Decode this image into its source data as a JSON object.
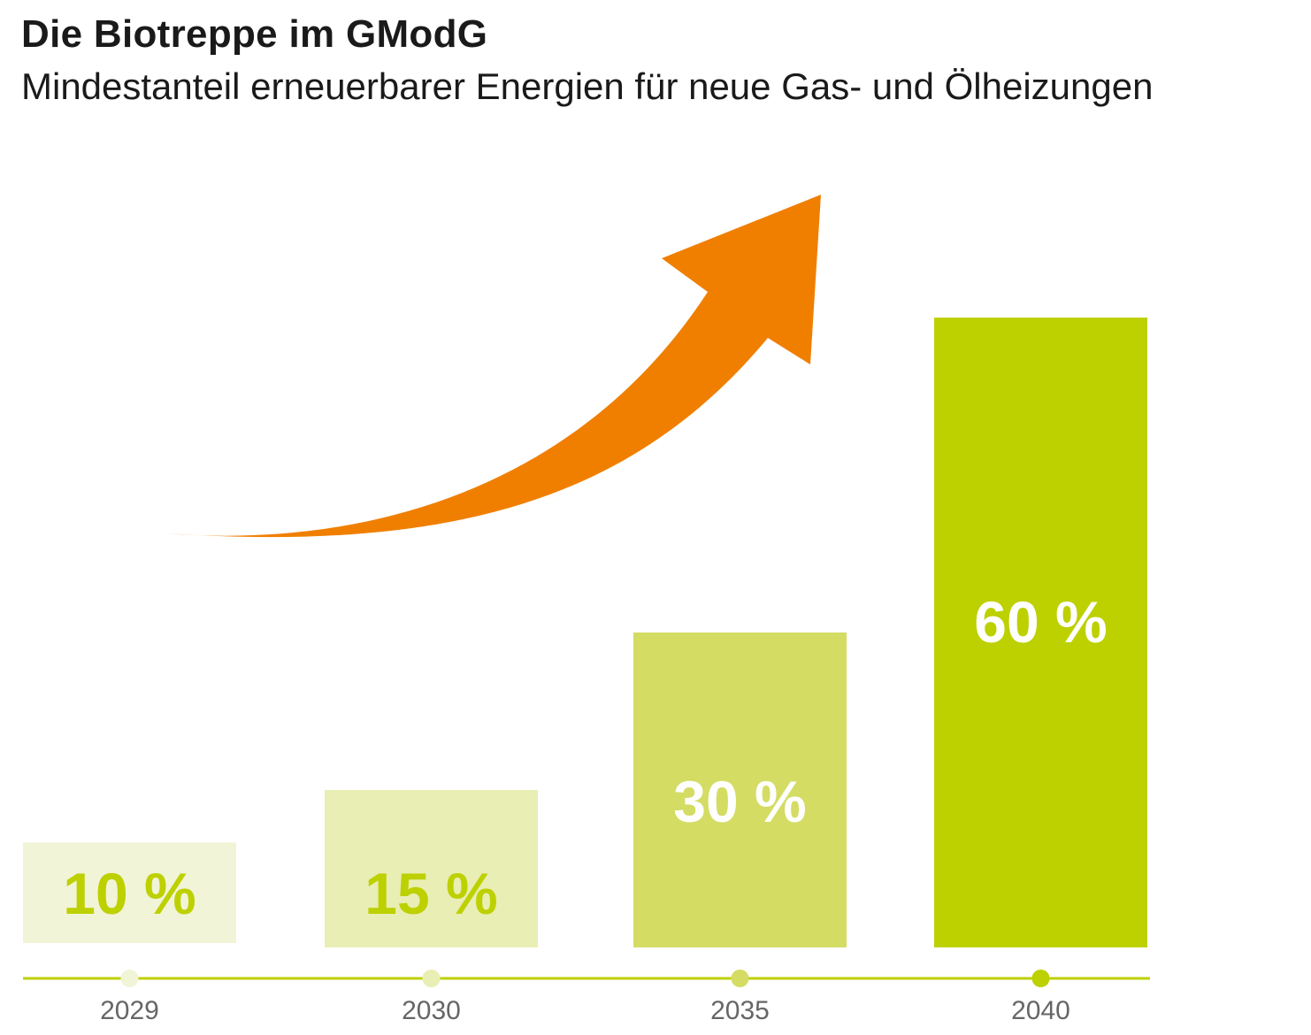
{
  "chart_data": {
    "type": "bar",
    "title": "Die Biotreppe im GModG",
    "subtitle": "Mindestanteil erneuerbarer Energien für neue Gas- und Ölheizungen",
    "categories": [
      "2029",
      "2030",
      "2035",
      "2040"
    ],
    "values": [
      10,
      15,
      30,
      60
    ],
    "value_labels": [
      "10 %",
      "15 %",
      "30 %",
      "60 %"
    ],
    "value_unit": "%",
    "ylim": [
      0,
      60
    ],
    "grid": false,
    "legend": "none",
    "annotation": "rising-arrow",
    "colors": {
      "bars": [
        "#f1f4d7",
        "#e9eeb4",
        "#d4dc64",
        "#bdd000"
      ],
      "value_labels": [
        "#bdd000",
        "#bdd000",
        "#ffffff",
        "#ffffff"
      ],
      "timeline_dots": [
        "#f1f4d7",
        "#e9eeb4",
        "#d4dc64",
        "#bdd000"
      ],
      "axis_line": "#bdd000",
      "tick_label": "#666666",
      "arrow": "#f07f00"
    }
  }
}
